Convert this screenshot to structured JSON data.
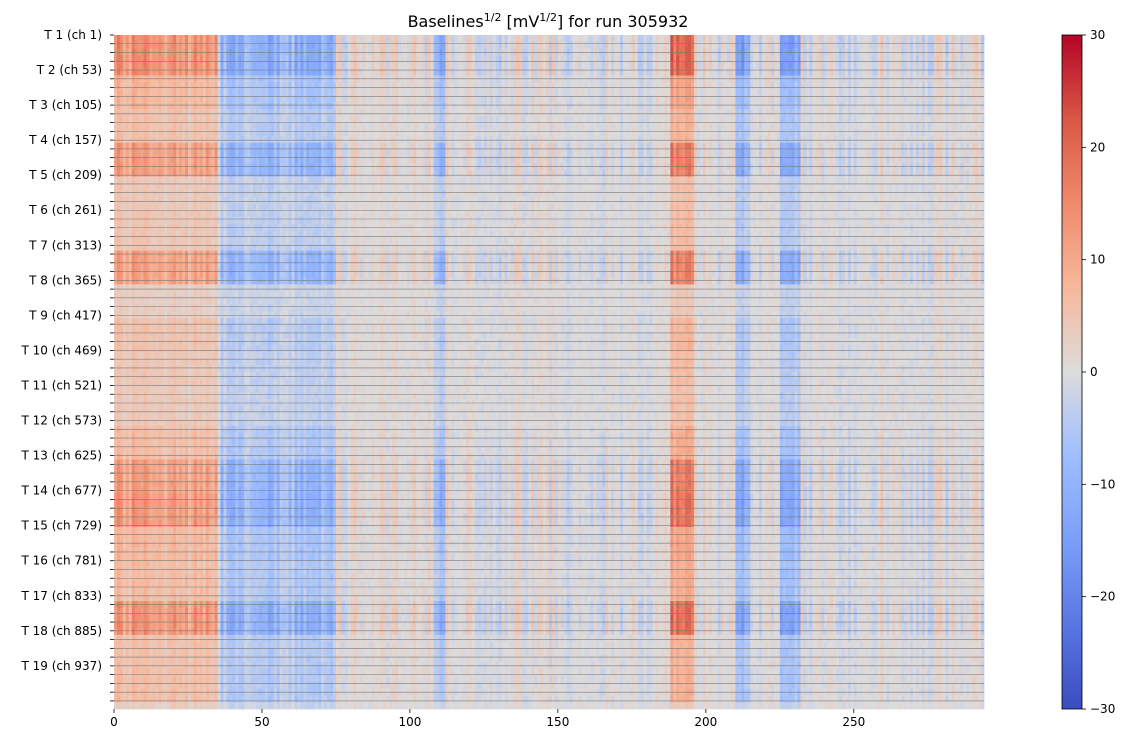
{
  "chart_data": {
    "type": "heatmap",
    "title_prefix": "Baselines",
    "title_exp": "1/2",
    "title_unit_open": " [mV",
    "title_unit_exp": "1/2",
    "title_suffix": "] for run 305932",
    "x_ticks": [
      0,
      50,
      100,
      150,
      200,
      250
    ],
    "xlim": [
      0,
      294
    ],
    "n_rows": 1000,
    "y_tick_labels": [
      "T 1 (ch 1)",
      "T 2 (ch 53)",
      "T 3 (ch 105)",
      "T 4 (ch 157)",
      "T 5 (ch 209)",
      "T 6 (ch 261)",
      "T 7 (ch 313)",
      "T 8 (ch 365)",
      "T 9 (ch 417)",
      "T 10 (ch 469)",
      "T 11 (ch 521)",
      "T 12 (ch 573)",
      "T 13 (ch 625)",
      "T 14 (ch 677)",
      "T 15 (ch 729)",
      "T 16 (ch 781)",
      "T 17 (ch 833)",
      "T 18 (ch 885)",
      "T 19 (ch 937)"
    ],
    "y_tick_channels": [
      1,
      53,
      105,
      157,
      209,
      261,
      313,
      365,
      417,
      469,
      521,
      573,
      625,
      677,
      729,
      781,
      833,
      885,
      937
    ],
    "colorbar": {
      "colormap": "coolwarm",
      "range": [
        -30,
        30
      ],
      "ticks": [
        30,
        20,
        10,
        0,
        -10,
        -20,
        -30
      ],
      "tick_labels": [
        "30",
        "20",
        "10",
        "0",
        "−10",
        "−20",
        "−30"
      ]
    },
    "grid_lines": true,
    "column_bands": [
      {
        "x": [
          0,
          35
        ],
        "value": 5,
        "note": "warm band"
      },
      {
        "x": [
          36,
          75
        ],
        "value": -4,
        "note": "cool band, strongest near 50-70"
      },
      {
        "x": [
          108,
          112
        ],
        "value": -5
      },
      {
        "x": [
          188,
          196
        ],
        "value": 8,
        "note": "warm spike"
      },
      {
        "x": [
          210,
          215
        ],
        "value": -6
      },
      {
        "x": [
          225,
          232
        ],
        "value": -5
      }
    ]
  }
}
